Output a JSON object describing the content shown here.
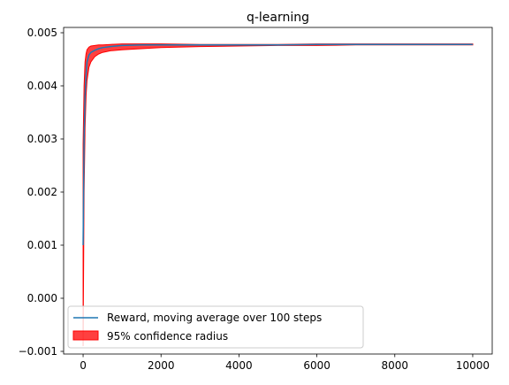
{
  "chart_data": {
    "type": "line",
    "title": "q-learning",
    "xlabel": "",
    "ylabel": "",
    "xlim": [
      -500,
      10500
    ],
    "ylim": [
      -0.00105,
      0.0051
    ],
    "xticks": [
      0,
      2000,
      4000,
      6000,
      8000,
      10000
    ],
    "xtick_labels": [
      "0",
      "2000",
      "4000",
      "6000",
      "8000",
      "10000"
    ],
    "yticks": [
      -0.001,
      0.0,
      0.001,
      0.002,
      0.003,
      0.004,
      0.005
    ],
    "ytick_labels": [
      "−0.001",
      "0.000",
      "0.001",
      "0.002",
      "0.003",
      "0.004",
      "0.005"
    ],
    "grid": false,
    "legend_position": "lower-left",
    "series": [
      {
        "name": "Reward, moving average over 100 steps",
        "color": "#1f77b4",
        "x": [
          0,
          25,
          50,
          75,
          100,
          150,
          200,
          300,
          400,
          500,
          700,
          1000,
          1500,
          2000,
          3000,
          4000,
          5000,
          6000,
          7000,
          8000,
          9000,
          10000
        ],
        "y": [
          0.001,
          0.003,
          0.0038,
          0.0042,
          0.00445,
          0.00458,
          0.00463,
          0.00467,
          0.0047,
          0.00472,
          0.00474,
          0.00476,
          0.00477,
          0.00477,
          0.00477,
          0.00477,
          0.00477,
          0.00478,
          0.00478,
          0.00478,
          0.00478,
          0.00478
        ]
      }
    ],
    "band": {
      "name": "95% confidence radius",
      "color": "#ff0000",
      "alpha": 0.75,
      "x": [
        0,
        25,
        50,
        75,
        100,
        150,
        200,
        300,
        400,
        500,
        700,
        1000,
        1500,
        2000,
        3000,
        4000,
        5000,
        6000,
        7000,
        8000,
        9000,
        10000
      ],
      "lower": [
        -0.0009,
        0.002,
        0.0032,
        0.0038,
        0.0041,
        0.00435,
        0.00445,
        0.00455,
        0.0046,
        0.00463,
        0.00466,
        0.00468,
        0.0047,
        0.00472,
        0.00474,
        0.00475,
        0.00476,
        0.00476,
        0.00477,
        0.00477,
        0.00477,
        0.00477
      ],
      "upper": [
        0.0029,
        0.004,
        0.00445,
        0.0046,
        0.00468,
        0.00473,
        0.00475,
        0.00476,
        0.00477,
        0.00477,
        0.00478,
        0.00479,
        0.00479,
        0.00479,
        0.00478,
        0.00478,
        0.00478,
        0.00479,
        0.00479,
        0.00479,
        0.00479,
        0.00479
      ]
    }
  }
}
